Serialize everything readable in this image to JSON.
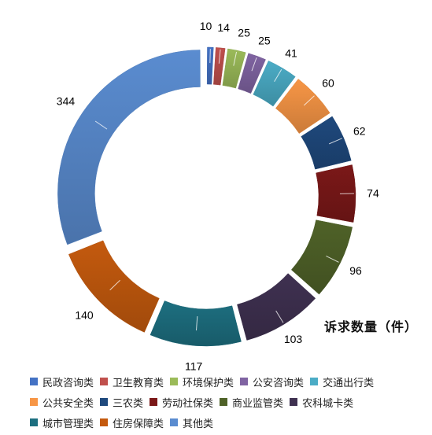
{
  "chart_data": {
    "type": "pie",
    "variant": "doughnut-exploded",
    "title": "",
    "caption": "诉求数量（件）",
    "legend_position": "bottom",
    "categories": [
      "民政咨询类",
      "卫生教育类",
      "环境保护类",
      "公安咨询类",
      "交通出行类",
      "公共安全类",
      "三农类",
      "劳动社保类",
      "商业监管类",
      "农科城卡类",
      "城市管理类",
      "住房保障类",
      "其他类"
    ],
    "values": [
      10,
      14,
      25,
      25,
      41,
      60,
      62,
      74,
      96,
      103,
      117,
      140,
      344
    ],
    "colors": [
      "#4472C4",
      "#C0504D",
      "#9BBB59",
      "#8064A2",
      "#4BACC6",
      "#F79646",
      "#1F497D",
      "#7B1818",
      "#4F6228",
      "#3F3151",
      "#1D6F80",
      "#C45A0E",
      "#5A8CD0"
    ]
  }
}
